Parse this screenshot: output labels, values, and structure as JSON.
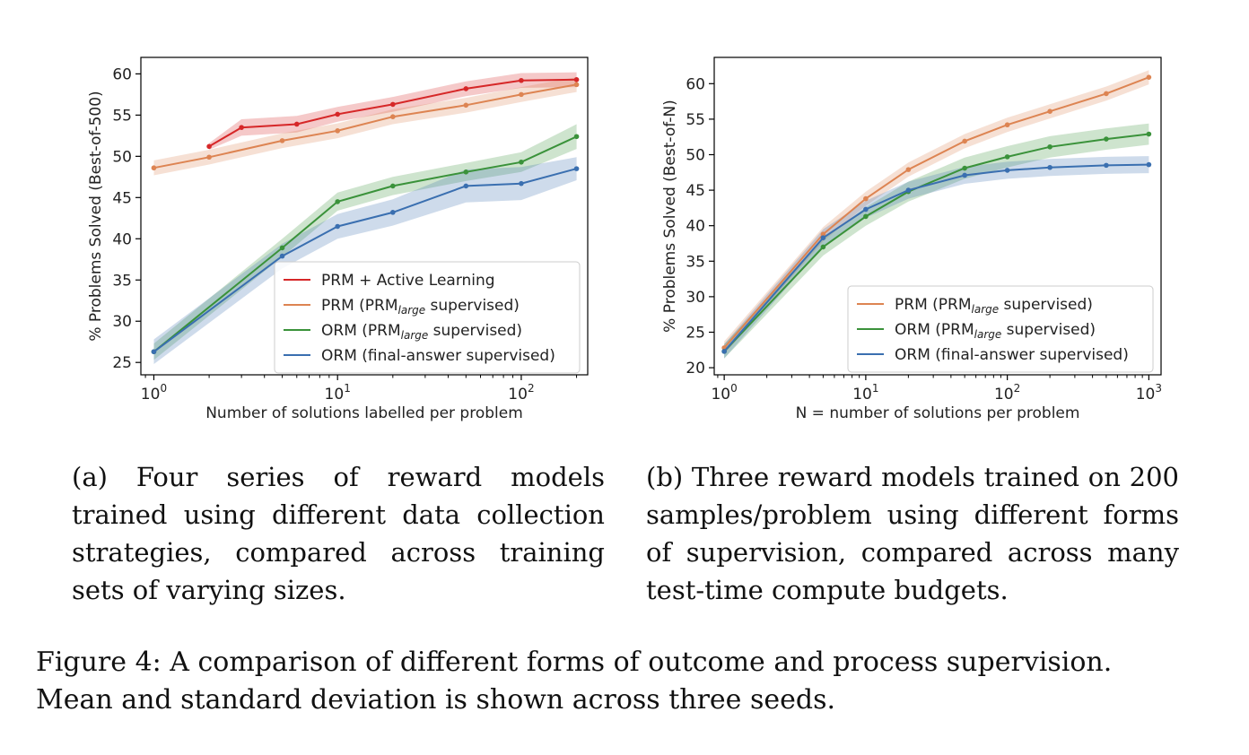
{
  "chart_data": [
    {
      "type": "line",
      "panel": "a",
      "xscale": "log",
      "xlabel": "Number of solutions labelled per problem",
      "ylabel": "% Problems Solved (Best-of-500)",
      "xlim": [
        0.85,
        230
      ],
      "ylim": [
        23.5,
        62
      ],
      "xticks": [
        {
          "value": 1,
          "base": "10",
          "exp": "0"
        },
        {
          "value": 10,
          "base": "10",
          "exp": "1"
        },
        {
          "value": 100,
          "base": "10",
          "exp": "2"
        }
      ],
      "yticks": [
        25,
        30,
        35,
        40,
        45,
        50,
        55,
        60
      ],
      "legend_position": "lower-right",
      "series": [
        {
          "name": "PRM + Active Learning",
          "color": "#d62728",
          "x": [
            2,
            3,
            6,
            10,
            20,
            50,
            100,
            200
          ],
          "y": [
            51.2,
            53.5,
            53.9,
            55.1,
            56.3,
            58.2,
            59.2,
            59.3
          ],
          "std": [
            0.4,
            1.0,
            1.0,
            0.9,
            0.9,
            0.9,
            0.9,
            0.9
          ]
        },
        {
          "name": "PRM (PRM_large supervised)",
          "label_main": "PRM (PRM",
          "label_sub": "large",
          "label_tail": " supervised)",
          "color": "#dd8452",
          "x": [
            1,
            2,
            5,
            10,
            20,
            50,
            100,
            200
          ],
          "y": [
            48.6,
            49.9,
            51.9,
            53.1,
            54.8,
            56.2,
            57.5,
            58.7
          ],
          "std": [
            0.9,
            0.9,
            0.9,
            0.9,
            0.9,
            0.9,
            0.9,
            0.9
          ]
        },
        {
          "name": "ORM (PRM_large supervised)",
          "label_main": "ORM (PRM",
          "label_sub": "large",
          "label_tail": " supervised)",
          "color": "#3a923a",
          "x": [
            1,
            5,
            10,
            20,
            50,
            100,
            200
          ],
          "y": [
            26.3,
            38.9,
            44.5,
            46.4,
            48.1,
            49.3,
            52.4
          ],
          "std": [
            1.0,
            1.1,
            1.1,
            1.1,
            1.1,
            1.2,
            1.5
          ]
        },
        {
          "name": "ORM (final-answer supervised)",
          "label_main": "ORM (final-answer supervised)",
          "label_sub": "",
          "label_tail": "",
          "color": "#3a6fb0",
          "x": [
            1,
            5,
            10,
            20,
            50,
            100,
            200
          ],
          "y": [
            26.3,
            37.9,
            41.5,
            43.2,
            46.4,
            46.7,
            48.5
          ],
          "std": [
            1.5,
            1.5,
            1.5,
            1.6,
            2.0,
            2.0,
            1.4
          ]
        }
      ]
    },
    {
      "type": "line",
      "panel": "b",
      "xscale": "log",
      "xlabel": "N = number of solutions per problem",
      "ylabel": "% Problems Solved (Best-of-N)",
      "xlim": [
        0.85,
        1220
      ],
      "ylim": [
        19,
        63.7
      ],
      "xticks": [
        {
          "value": 1,
          "base": "10",
          "exp": "0"
        },
        {
          "value": 10,
          "base": "10",
          "exp": "1"
        },
        {
          "value": 100,
          "base": "10",
          "exp": "2"
        },
        {
          "value": 1000,
          "base": "10",
          "exp": "3"
        }
      ],
      "yticks": [
        20,
        25,
        30,
        35,
        40,
        45,
        50,
        55,
        60
      ],
      "legend_position": "lower-right",
      "series": [
        {
          "name": "PRM (PRM_large supervised)",
          "label_main": "PRM (PRM",
          "label_sub": "large",
          "label_tail": " supervised)",
          "color": "#dd8452",
          "x": [
            1,
            5,
            10,
            20,
            50,
            100,
            200,
            500,
            1000
          ],
          "y": [
            22.8,
            38.8,
            43.8,
            47.9,
            51.9,
            54.2,
            56.1,
            58.6,
            60.9
          ],
          "std": [
            0.9,
            1.0,
            1.0,
            1.0,
            1.0,
            1.0,
            1.0,
            1.0,
            1.0
          ]
        },
        {
          "name": "ORM (PRM_large supervised)",
          "label_main": "ORM (PRM",
          "label_sub": "large",
          "label_tail": " supervised)",
          "color": "#3a923a",
          "x": [
            1,
            5,
            10,
            20,
            50,
            100,
            200,
            500,
            1000
          ],
          "y": [
            22.3,
            37.0,
            41.3,
            44.8,
            48.1,
            49.7,
            51.1,
            52.2,
            52.9
          ],
          "std": [
            1.0,
            1.2,
            1.3,
            1.4,
            1.5,
            1.5,
            1.5,
            1.5,
            1.5
          ]
        },
        {
          "name": "ORM (final-answer supervised)",
          "label_main": "ORM (final-answer supervised)",
          "label_sub": "",
          "label_tail": "",
          "color": "#3a6fb0",
          "x": [
            1,
            5,
            10,
            20,
            50,
            100,
            200,
            500,
            1000
          ],
          "y": [
            22.3,
            38.3,
            42.3,
            45.0,
            47.1,
            47.8,
            48.2,
            48.5,
            48.6
          ],
          "std": [
            1.0,
            1.2,
            1.2,
            1.2,
            1.2,
            1.2,
            1.2,
            1.2,
            1.2
          ]
        }
      ]
    }
  ],
  "captions": {
    "a": "(a) Four series of reward models trained using different data collection strategies, compared across training sets of varying sizes.",
    "b": "(b) Three reward models trained on 200 samples/problem using different forms of supervision, compared across many test-time compute budgets.",
    "figure_line1": "Figure 4: A comparison of different forms of outcome and process supervision.",
    "figure_line2": "Mean and standard deviation is shown across three seeds."
  }
}
